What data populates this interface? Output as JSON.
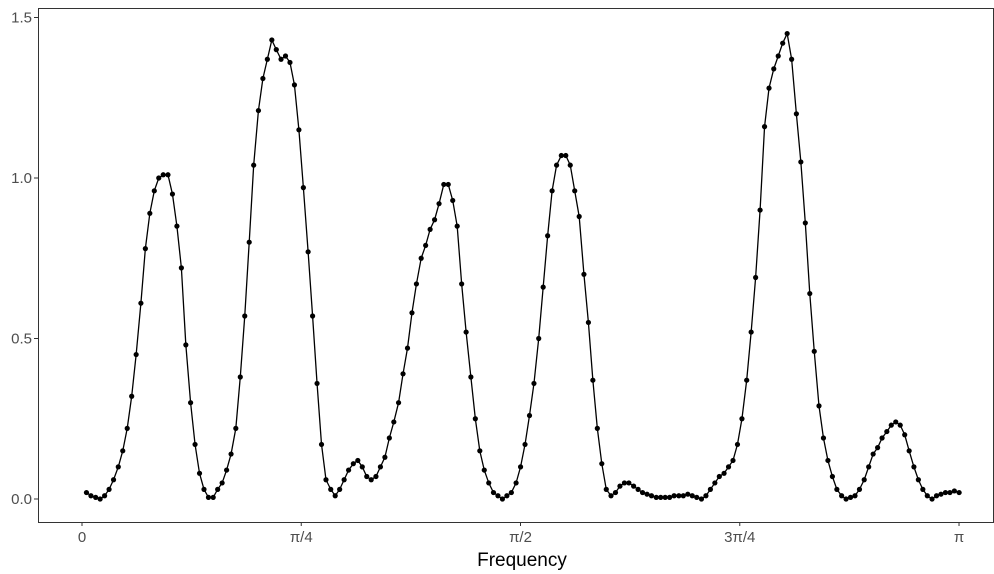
{
  "chart_data": {
    "type": "line",
    "xlabel": "Frequency",
    "color": "#000000",
    "grid": false,
    "xlim": [
      -0.1576,
      3.2669
    ],
    "ylim": [
      -0.0717,
      1.5296
    ],
    "xticks": [
      0,
      {
        "value": 0.7854,
        "label": "π/4"
      },
      {
        "value": 1.5708,
        "label": "π/2"
      },
      {
        "value": 2.3562,
        "label": "3π/4"
      },
      {
        "value": 3.1416,
        "label": "π"
      }
    ],
    "yticks": [
      {
        "value": 0,
        "label": "0.0"
      },
      0.5,
      {
        "value": 1,
        "label": "1.0"
      },
      1.5
    ],
    "x": [
      0.016,
      0.032,
      0.049,
      0.065,
      0.081,
      0.097,
      0.113,
      0.13,
      0.146,
      0.162,
      0.178,
      0.194,
      0.211,
      0.227,
      0.243,
      0.259,
      0.275,
      0.291,
      0.308,
      0.324,
      0.34,
      0.356,
      0.372,
      0.389,
      0.405,
      0.421,
      0.437,
      0.453,
      0.47,
      0.486,
      0.502,
      0.518,
      0.534,
      0.551,
      0.567,
      0.583,
      0.599,
      0.615,
      0.632,
      0.648,
      0.664,
      0.68,
      0.696,
      0.713,
      0.729,
      0.745,
      0.761,
      0.777,
      0.793,
      0.81,
      0.826,
      0.842,
      0.858,
      0.874,
      0.891,
      0.907,
      0.923,
      0.939,
      0.955,
      0.972,
      0.988,
      1.004,
      1.02,
      1.036,
      1.053,
      1.069,
      1.085,
      1.101,
      1.117,
      1.134,
      1.15,
      1.166,
      1.182,
      1.198,
      1.215,
      1.231,
      1.247,
      1.263,
      1.279,
      1.296,
      1.312,
      1.328,
      1.344,
      1.36,
      1.376,
      1.393,
      1.409,
      1.425,
      1.441,
      1.457,
      1.474,
      1.49,
      1.506,
      1.522,
      1.538,
      1.555,
      1.571,
      1.587,
      1.603,
      1.619,
      1.636,
      1.652,
      1.668,
      1.684,
      1.7,
      1.717,
      1.733,
      1.749,
      1.765,
      1.781,
      1.798,
      1.814,
      1.83,
      1.846,
      1.862,
      1.878,
      1.895,
      1.911,
      1.927,
      1.943,
      1.959,
      1.976,
      1.992,
      2.008,
      2.024,
      2.04,
      2.057,
      2.073,
      2.089,
      2.105,
      2.121,
      2.138,
      2.154,
      2.17,
      2.186,
      2.202,
      2.219,
      2.235,
      2.251,
      2.267,
      2.283,
      2.3,
      2.316,
      2.332,
      2.348,
      2.364,
      2.381,
      2.397,
      2.413,
      2.429,
      2.445,
      2.461,
      2.478,
      2.494,
      2.51,
      2.526,
      2.542,
      2.559,
      2.575,
      2.591,
      2.607,
      2.623,
      2.64,
      2.656,
      2.672,
      2.688,
      2.704,
      2.721,
      2.737,
      2.753,
      2.769,
      2.785,
      2.802,
      2.818,
      2.834,
      2.85,
      2.866,
      2.883,
      2.899,
      2.915,
      2.931,
      2.947,
      2.963,
      2.98,
      2.996,
      3.012,
      3.028,
      3.045,
      3.061,
      3.077,
      3.093,
      3.109,
      3.125,
      3.142
    ],
    "values": [
      0.02,
      0.01,
      0.005,
      0,
      0.01,
      0.03,
      0.06,
      0.1,
      0.15,
      0.22,
      0.32,
      0.45,
      0.61,
      0.78,
      0.89,
      0.96,
      1.0,
      1.01,
      1.01,
      0.95,
      0.85,
      0.72,
      0.48,
      0.3,
      0.17,
      0.08,
      0.03,
      0.005,
      0.005,
      0.03,
      0.05,
      0.09,
      0.14,
      0.22,
      0.38,
      0.57,
      0.8,
      1.04,
      1.21,
      1.31,
      1.37,
      1.43,
      1.4,
      1.37,
      1.38,
      1.36,
      1.29,
      1.15,
      0.97,
      0.77,
      0.57,
      0.36,
      0.17,
      0.06,
      0.03,
      0.01,
      0.03,
      0.06,
      0.09,
      0.11,
      0.12,
      0.1,
      0.07,
      0.06,
      0.07,
      0.1,
      0.13,
      0.19,
      0.24,
      0.3,
      0.39,
      0.47,
      0.58,
      0.67,
      0.75,
      0.79,
      0.84,
      0.87,
      0.92,
      0.98,
      0.98,
      0.93,
      0.85,
      0.67,
      0.52,
      0.38,
      0.25,
      0.15,
      0.09,
      0.05,
      0.02,
      0.01,
      0,
      0.01,
      0.02,
      0.05,
      0.1,
      0.17,
      0.26,
      0.36,
      0.5,
      0.66,
      0.82,
      0.96,
      1.04,
      1.07,
      1.07,
      1.04,
      0.96,
      0.88,
      0.7,
      0.55,
      0.37,
      0.22,
      0.11,
      0.03,
      0.01,
      0.02,
      0.04,
      0.05,
      0.05,
      0.04,
      0.03,
      0.02,
      0.015,
      0.01,
      0.005,
      0.005,
      0.005,
      0.005,
      0.01,
      0.01,
      0.01,
      0.015,
      0.01,
      0.005,
      0,
      0.01,
      0.03,
      0.05,
      0.07,
      0.08,
      0.1,
      0.12,
      0.17,
      0.25,
      0.37,
      0.52,
      0.69,
      0.9,
      1.16,
      1.28,
      1.34,
      1.38,
      1.42,
      1.45,
      1.37,
      1.2,
      1.05,
      0.86,
      0.64,
      0.46,
      0.29,
      0.19,
      0.12,
      0.07,
      0.03,
      0.01,
      0,
      0.005,
      0.01,
      0.03,
      0.06,
      0.1,
      0.14,
      0.16,
      0.19,
      0.21,
      0.23,
      0.24,
      0.23,
      0.2,
      0.15,
      0.1,
      0.06,
      0.03,
      0.01,
      0,
      0.01,
      0.015,
      0.02,
      0.02,
      0.025,
      0.02
    ]
  }
}
